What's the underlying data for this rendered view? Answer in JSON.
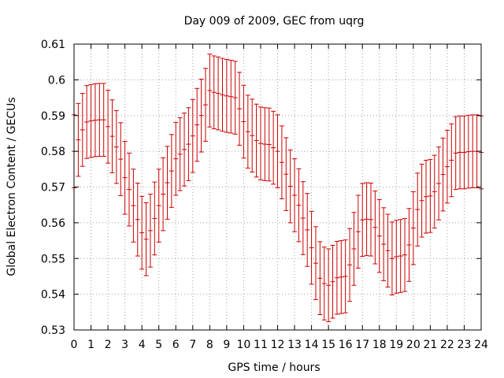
{
  "chart_data": {
    "type": "scatter",
    "title": "Day 009 of 2009, GEC from uqrg",
    "xlabel": "GPS time / hours",
    "ylabel": "Global Electron Content / GECUs",
    "xlim": [
      0,
      24
    ],
    "ylim": [
      0.53,
      0.61
    ],
    "grid": true,
    "colors": {
      "series": "#cc0000",
      "grid": "#a0a0a0",
      "axis": "#000000"
    },
    "x_ticks": [
      "0",
      "1",
      "2",
      "3",
      "4",
      "5",
      "6",
      "7",
      "8",
      "9",
      "10",
      "11",
      "12",
      "13",
      "14",
      "15",
      "16",
      "17",
      "18",
      "19",
      "20",
      "21",
      "22",
      "23",
      "24"
    ],
    "y_ticks": [
      "0.53",
      "0.54",
      "0.55",
      "0.56",
      "0.57",
      "0.58",
      "0.59",
      "0.6",
      "0.61"
    ],
    "series": [
      {
        "name": "GEC",
        "x": [
          0,
          0.25,
          0.5,
          0.75,
          1,
          1.25,
          1.5,
          1.75,
          2,
          2.25,
          2.5,
          2.75,
          3,
          3.25,
          3.5,
          3.75,
          4,
          4.25,
          4.5,
          4.75,
          5,
          5.25,
          5.5,
          5.75,
          6,
          6.25,
          6.5,
          6.75,
          7,
          7.25,
          7.5,
          7.75,
          8,
          8.25,
          8.5,
          8.75,
          9,
          9.25,
          9.5,
          9.75,
          10,
          10.25,
          10.5,
          10.75,
          11,
          11.25,
          11.5,
          11.75,
          12,
          12.25,
          12.5,
          12.75,
          13,
          13.25,
          13.5,
          13.75,
          14,
          14.25,
          14.5,
          14.75,
          15,
          15.25,
          15.5,
          15.75,
          16,
          16.25,
          16.5,
          16.75,
          17,
          17.25,
          17.5,
          17.75,
          18,
          18.25,
          18.5,
          18.75,
          19,
          19.25,
          19.5,
          19.75,
          20,
          20.25,
          20.5,
          20.75,
          21,
          21.25,
          21.5,
          21.75,
          22,
          22.25,
          22.5,
          22.75,
          23,
          23.25,
          23.5,
          23.75,
          24
        ],
        "y": [
          0.58,
          0.5832,
          0.586,
          0.5882,
          0.5885,
          0.5887,
          0.5888,
          0.5888,
          0.5869,
          0.5842,
          0.5812,
          0.5778,
          0.5726,
          0.5693,
          0.5648,
          0.5609,
          0.5572,
          0.5554,
          0.5578,
          0.5612,
          0.5648,
          0.568,
          0.5712,
          0.5745,
          0.5779,
          0.5792,
          0.5805,
          0.582,
          0.5843,
          0.5874,
          0.59,
          0.593,
          0.597,
          0.5965,
          0.5962,
          0.5958,
          0.5955,
          0.5953,
          0.595,
          0.5919,
          0.5883,
          0.5855,
          0.5844,
          0.583,
          0.5822,
          0.582,
          0.5819,
          0.581,
          0.58,
          0.5769,
          0.5736,
          0.5702,
          0.5677,
          0.5649,
          0.5613,
          0.558,
          0.553,
          0.5487,
          0.5445,
          0.543,
          0.5425,
          0.5435,
          0.5446,
          0.5448,
          0.545,
          0.5482,
          0.5527,
          0.5575,
          0.5608,
          0.561,
          0.5609,
          0.5587,
          0.5563,
          0.554,
          0.5522,
          0.55,
          0.5505,
          0.5507,
          0.551,
          0.5538,
          0.5585,
          0.5637,
          0.5662,
          0.5673,
          0.5675,
          0.5687,
          0.571,
          0.5735,
          0.5757,
          0.5775,
          0.5795,
          0.5797,
          0.5797,
          0.5799,
          0.58,
          0.58,
          0.5797
        ],
        "err": 0.0102
      }
    ]
  }
}
